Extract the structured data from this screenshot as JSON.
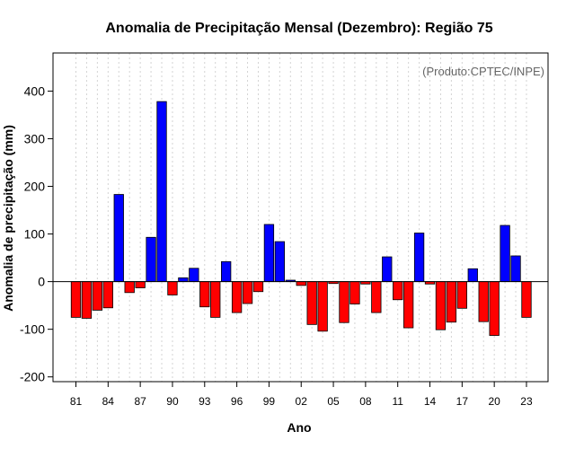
{
  "chart_data": {
    "type": "bar",
    "title": "Anomalia de Precipitação Mensal (Dezembro): Região 75",
    "xlabel": "Ano",
    "ylabel": "Anomalia de precipitação (mm)",
    "annotation": "(Produto:CPTEC/INPE)",
    "ylim": [
      -210,
      480
    ],
    "yticks": [
      -200,
      -100,
      0,
      100,
      200,
      300,
      400
    ],
    "ytick_labels": [
      "-200",
      "-100",
      "0",
      "100",
      "200",
      "300",
      "400"
    ],
    "xtick_labels": [
      "81",
      "84",
      "87",
      "90",
      "93",
      "96",
      "99",
      "02",
      "05",
      "08",
      "11",
      "14",
      "17",
      "20",
      "23"
    ],
    "xtick_years": [
      1981,
      1984,
      1987,
      1990,
      1993,
      1996,
      1999,
      2002,
      2005,
      2008,
      2011,
      2014,
      2017,
      2020,
      2023
    ],
    "positive_color": "#0000ff",
    "negative_color": "#ff0000",
    "grid": true,
    "categories": [
      1981,
      1982,
      1983,
      1984,
      1985,
      1986,
      1987,
      1988,
      1989,
      1990,
      1991,
      1992,
      1993,
      1994,
      1995,
      1996,
      1997,
      1998,
      1999,
      2000,
      2001,
      2002,
      2003,
      2004,
      2005,
      2006,
      2007,
      2008,
      2009,
      2010,
      2011,
      2012,
      2013,
      2014,
      2015,
      2016,
      2017,
      2018,
      2019,
      2020,
      2021,
      2022,
      2023
    ],
    "values": [
      -75,
      -77,
      -60,
      -55,
      183,
      -23,
      -13,
      93,
      378,
      -28,
      8,
      28,
      -53,
      -75,
      42,
      -65,
      -46,
      -21,
      120,
      84,
      3,
      -8,
      -90,
      -104,
      -4,
      -86,
      -47,
      -5,
      -65,
      52,
      -38,
      -97,
      102,
      -5,
      -101,
      -85,
      -56,
      27,
      -84,
      -113,
      118,
      54,
      -75
    ]
  }
}
